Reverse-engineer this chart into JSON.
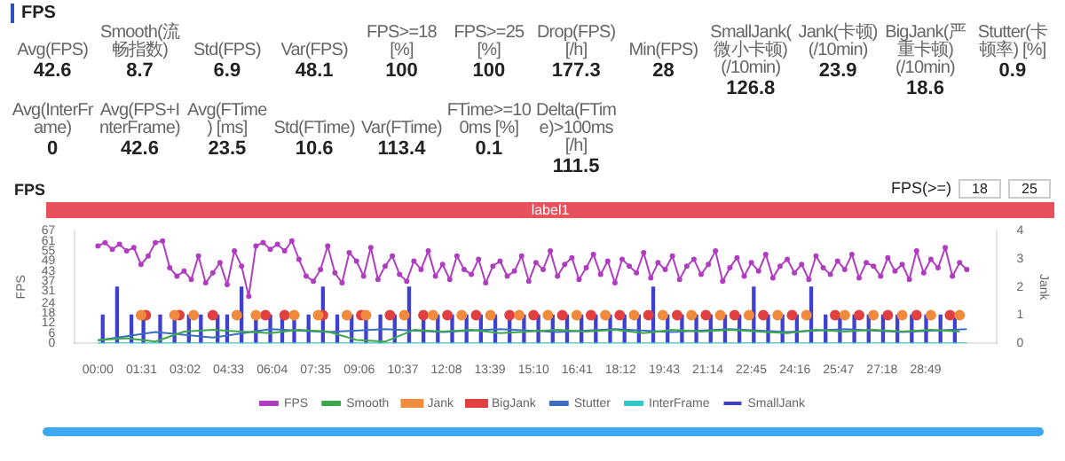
{
  "chart_data": [
    {
      "type": "other",
      "title": "FPS",
      "annotations": [
        "Avg(FPS)",
        "42.6",
        "Smooth(流畅指数)",
        "8.7",
        "Std(FPS)",
        "6.9",
        "Var(FPS)",
        "48.1",
        "FPS>=18 [%]",
        "100",
        "FPS>=25 [%]",
        "100",
        "Drop(FPS) [/h]",
        "177.3",
        "Min(FPS)",
        "28",
        "SmallJank(微小卡顿)(/10min)",
        "126.8",
        "Jank(卡顿)(/10min)",
        "23.9",
        "BigJank(严重卡顿)(/10min)",
        "18.6",
        "Stutter(卡顿率) [%]",
        "0.9",
        "Avg(InterFrame)",
        "0",
        "Avg(FPS+InterFrame)",
        "42.6",
        "Avg(FTime) [ms]",
        "23.5",
        "Std(FTime)",
        "10.6",
        "Var(FTime)",
        "113.4",
        "FTime>=100ms [%]",
        "0.1",
        "Delta(FTime)>100ms [/h]",
        "111.5"
      ]
    },
    {
      "type": "line",
      "title": "FPS",
      "ylabel": "FPS",
      "y2label": "Jank",
      "annotations": [
        "label1",
        "FPS(>=)",
        "18",
        "25"
      ],
      "legend": "bottom",
      "grid": false,
      "marker": "circle",
      "xlim": [
        0,
        1830
      ],
      "xticks": [
        {
          "value": 0,
          "label": "00:00"
        },
        {
          "value": 91,
          "label": "01:31"
        },
        {
          "value": 182,
          "label": "03:02"
        },
        {
          "value": 273,
          "label": "04:33"
        },
        {
          "value": 364,
          "label": "06:04"
        },
        {
          "value": 455,
          "label": "07:35"
        },
        {
          "value": 546,
          "label": "09:06"
        },
        {
          "value": 637,
          "label": "10:37"
        },
        {
          "value": 728,
          "label": "12:08"
        },
        {
          "value": 819,
          "label": "13:39"
        },
        {
          "value": 910,
          "label": "15:10"
        },
        {
          "value": 1001,
          "label": "16:41"
        },
        {
          "value": 1092,
          "label": "18:12"
        },
        {
          "value": 1183,
          "label": "19:43"
        },
        {
          "value": 1274,
          "label": "21:14"
        },
        {
          "value": 1365,
          "label": "22:45"
        },
        {
          "value": 1456,
          "label": "24:16"
        },
        {
          "value": 1547,
          "label": "25:47"
        },
        {
          "value": 1638,
          "label": "27:18"
        },
        {
          "value": 1729,
          "label": "28:49"
        }
      ],
      "ylim": [
        0,
        67
      ],
      "yticks": [
        0,
        6,
        12,
        18,
        24,
        31,
        37,
        43,
        49,
        55,
        61,
        67
      ],
      "y2lim": [
        0,
        4
      ],
      "y2ticks": [
        0,
        1,
        2,
        3,
        4
      ],
      "series": [
        {
          "name": "FPS",
          "type": "line",
          "color": "#b03cc0",
          "x": [
            0,
            15,
            30,
            45,
            60,
            75,
            90,
            105,
            120,
            135,
            150,
            165,
            180,
            195,
            210,
            225,
            240,
            255,
            270,
            285,
            300,
            315,
            330,
            345,
            360,
            375,
            390,
            405,
            420,
            435,
            450,
            465,
            480,
            495,
            510,
            525,
            540,
            555,
            570,
            585,
            600,
            615,
            630,
            645,
            660,
            675,
            690,
            705,
            720,
            735,
            750,
            765,
            780,
            795,
            810,
            825,
            840,
            855,
            870,
            885,
            900,
            915,
            930,
            945,
            960,
            975,
            990,
            1005,
            1020,
            1035,
            1050,
            1065,
            1080,
            1095,
            1110,
            1125,
            1140,
            1155,
            1170,
            1185,
            1200,
            1215,
            1230,
            1245,
            1260,
            1275,
            1290,
            1305,
            1320,
            1335,
            1350,
            1365,
            1380,
            1395,
            1410,
            1425,
            1440,
            1455,
            1470,
            1485,
            1500,
            1515,
            1530,
            1545,
            1560,
            1575,
            1590,
            1605,
            1620,
            1635,
            1650,
            1665,
            1680,
            1695,
            1710,
            1725,
            1740,
            1755,
            1770,
            1785,
            1800,
            1815
          ],
          "values": [
            58,
            60,
            56,
            59,
            55,
            57,
            47,
            52,
            60,
            61,
            45,
            40,
            43,
            38,
            52,
            36,
            42,
            48,
            35,
            55,
            46,
            28,
            58,
            60,
            56,
            59,
            55,
            61,
            50,
            40,
            37,
            44,
            58,
            42,
            36,
            54,
            49,
            40,
            57,
            38,
            46,
            52,
            41,
            37,
            49,
            44,
            55,
            40,
            47,
            38,
            52,
            44,
            41,
            50,
            36,
            46,
            49,
            40,
            43,
            52,
            37,
            48,
            44,
            55,
            40,
            47,
            51,
            38,
            45,
            53,
            41,
            49,
            36,
            50,
            46,
            42,
            54,
            39,
            48,
            44,
            52,
            38,
            46,
            50,
            41,
            47,
            55,
            37,
            45,
            51,
            40,
            48,
            43,
            53,
            39,
            46,
            50,
            42,
            47,
            38,
            52,
            45,
            41,
            49,
            44,
            53,
            39,
            48,
            46,
            40,
            51,
            43,
            47,
            38,
            55,
            42,
            50,
            45,
            57,
            40,
            48,
            44
          ]
        },
        {
          "name": "Smooth",
          "type": "line",
          "color": "#3aa84a",
          "marker": "none",
          "x": [
            0,
            60,
            120,
            180,
            240,
            300,
            360,
            420,
            480,
            540,
            600,
            660,
            720,
            780,
            840,
            900,
            960,
            1020,
            1080,
            1140,
            1200,
            1260,
            1320,
            1380,
            1440,
            1500,
            1560,
            1620,
            1680,
            1740,
            1800
          ],
          "values": [
            2,
            3,
            1,
            7,
            8,
            7,
            6,
            8,
            7,
            2,
            1,
            8,
            7,
            8,
            6,
            7,
            8,
            7,
            8,
            6,
            8,
            7,
            8,
            7,
            6,
            8,
            7,
            8,
            7,
            8,
            7
          ]
        },
        {
          "name": "SmallJank",
          "type": "bar",
          "axis": "y2",
          "color": "#4040d0",
          "x": [
            10,
            40,
            70,
            95,
            130,
            160,
            190,
            215,
            250,
            270,
            300,
            330,
            360,
            385,
            410,
            440,
            470,
            500,
            530,
            560,
            590,
            620,
            650,
            680,
            710,
            740,
            770,
            800,
            830,
            860,
            890,
            920,
            950,
            980,
            1010,
            1040,
            1070,
            1100,
            1130,
            1160,
            1190,
            1220,
            1250,
            1280,
            1310,
            1340,
            1370,
            1400,
            1430,
            1460,
            1490,
            1520,
            1550,
            1580,
            1610,
            1640,
            1670,
            1700,
            1730,
            1760,
            1790
          ],
          "values": [
            1,
            2,
            1,
            1,
            1,
            1,
            1,
            1,
            1,
            1,
            2,
            1,
            1,
            1,
            1,
            1,
            2,
            1,
            1,
            1,
            1,
            1,
            2,
            1,
            1,
            1,
            1,
            1,
            1,
            1,
            1,
            1,
            1,
            1,
            1,
            1,
            1,
            1,
            1,
            2,
            1,
            1,
            1,
            1,
            1,
            1,
            2,
            1,
            1,
            1,
            2,
            1,
            1,
            1,
            1,
            1,
            1,
            1,
            1,
            1,
            1
          ]
        },
        {
          "name": "Jank",
          "type": "scatter",
          "axis": "y2",
          "color": "#f08a3c",
          "x": [
            90,
            160,
            200,
            290,
            330,
            410,
            460,
            520,
            560,
            640,
            700,
            760,
            820,
            880,
            940,
            1000,
            1060,
            1120,
            1180,
            1240,
            1300,
            1360,
            1420,
            1480,
            1560,
            1620,
            1680,
            1740,
            1800
          ],
          "values": [
            1,
            1,
            1,
            1,
            1,
            1,
            1,
            1,
            1,
            1,
            1,
            1,
            1,
            1,
            1,
            1,
            1,
            1,
            1,
            1,
            1,
            1,
            1,
            1,
            1,
            1,
            1,
            1,
            1
          ]
        },
        {
          "name": "BigJank",
          "type": "scatter",
          "axis": "y2",
          "color": "#e04040",
          "x": [
            100,
            170,
            240,
            350,
            390,
            470,
            550,
            610,
            680,
            730,
            790,
            860,
            910,
            970,
            1030,
            1090,
            1150,
            1210,
            1270,
            1330,
            1390,
            1450,
            1540,
            1590,
            1650,
            1710,
            1780
          ],
          "values": [
            1,
            1,
            1,
            1,
            1,
            1,
            1,
            1,
            1,
            1,
            1,
            1,
            1,
            1,
            1,
            1,
            1,
            1,
            1,
            1,
            1,
            1,
            1,
            1,
            1,
            1,
            1
          ]
        },
        {
          "name": "Stutter",
          "type": "line",
          "axis": "y2",
          "color": "#3a6fc0",
          "marker": "none",
          "x": [
            0,
            120,
            240,
            360,
            480,
            600,
            720,
            840,
            960,
            1080,
            1200,
            1320,
            1440,
            1560,
            1680,
            1815
          ],
          "values": [
            0.1,
            0.4,
            0.2,
            0.5,
            0.4,
            0.5,
            0.4,
            0.5,
            0.4,
            0.5,
            0.4,
            0.5,
            0.4,
            0.5,
            0.4,
            0.5
          ]
        },
        {
          "name": "InterFrame",
          "type": "line",
          "color": "#30c8c8",
          "marker": "none",
          "x": [
            0,
            1815
          ],
          "values": [
            0,
            0
          ]
        }
      ]
    }
  ]
}
